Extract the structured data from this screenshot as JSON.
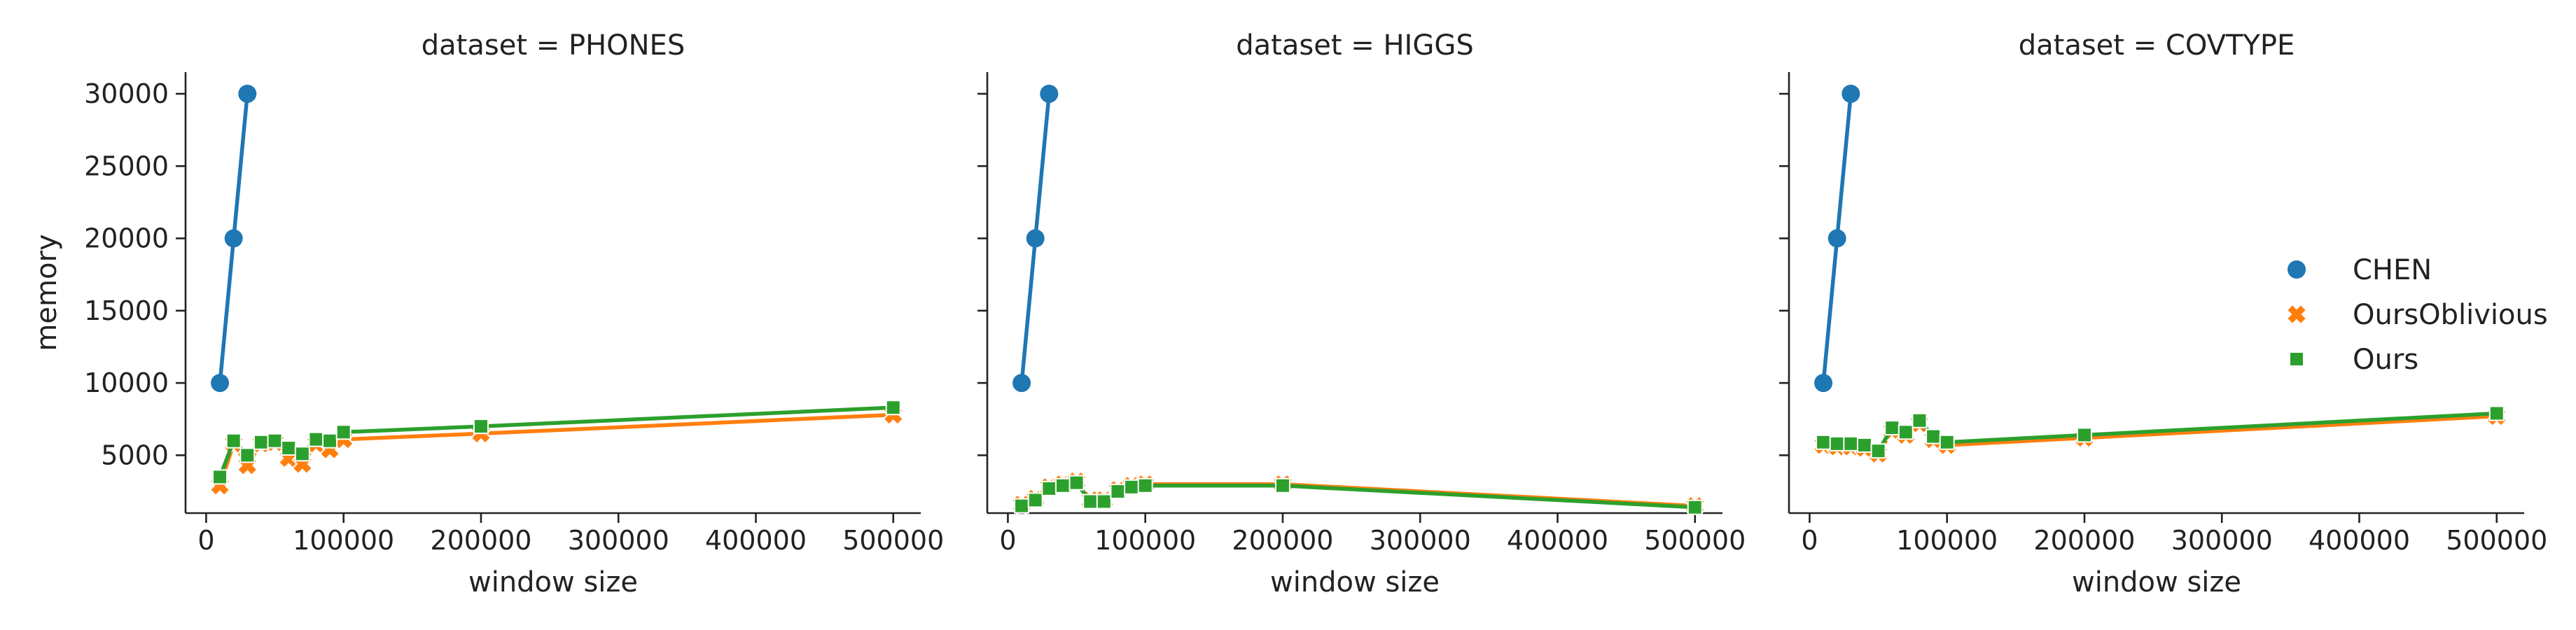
{
  "chart_data": {
    "type": "line",
    "ylabel": "memory",
    "xlabel": "window size",
    "sharey": true,
    "xlim": [
      -15000,
      520000
    ],
    "ylim": [
      1000,
      31500
    ],
    "xticks": [
      0,
      100000,
      200000,
      300000,
      400000,
      500000
    ],
    "yticks": [
      5000,
      10000,
      15000,
      20000,
      25000,
      30000
    ],
    "grid": false,
    "legend": {
      "placement": "right",
      "entries": [
        {
          "name": "CHEN",
          "color": "#1f77b4",
          "marker": "circle"
        },
        {
          "name": "OursOblivious",
          "color": "#ff7f0e",
          "marker": "x"
        },
        {
          "name": "Ours",
          "color": "#2ca02c",
          "marker": "square"
        }
      ]
    },
    "panels": [
      {
        "title": "dataset = PHONES",
        "series": [
          {
            "name": "CHEN",
            "color": "#1f77b4",
            "marker": "circle",
            "x": [
              10000,
              20000,
              30000
            ],
            "y": [
              10000,
              20000,
              30000
            ]
          },
          {
            "name": "OursOblivious",
            "color": "#ff7f0e",
            "marker": "x",
            "x": [
              10000,
              20000,
              30000,
              40000,
              50000,
              60000,
              70000,
              80000,
              90000,
              100000,
              200000,
              500000
            ],
            "y": [
              2900,
              5800,
              4300,
              5800,
              5900,
              4800,
              4400,
              5800,
              5400,
              6100,
              6500,
              7800
            ]
          },
          {
            "name": "Ours",
            "color": "#2ca02c",
            "marker": "square",
            "x": [
              10000,
              20000,
              30000,
              40000,
              50000,
              60000,
              70000,
              80000,
              90000,
              100000,
              200000,
              500000
            ],
            "y": [
              3500,
              6000,
              5000,
              5900,
              6000,
              5500,
              5100,
              6100,
              6000,
              6600,
              7000,
              8300
            ]
          }
        ]
      },
      {
        "title": "dataset = HIGGS",
        "series": [
          {
            "name": "CHEN",
            "color": "#1f77b4",
            "marker": "circle",
            "x": [
              10000,
              20000,
              30000
            ],
            "y": [
              10000,
              20000,
              30000
            ]
          },
          {
            "name": "OursOblivious",
            "color": "#ff7f0e",
            "marker": "x",
            "x": [
              10000,
              20000,
              30000,
              40000,
              50000,
              60000,
              70000,
              80000,
              90000,
              100000,
              200000,
              500000
            ],
            "y": [
              1600,
              2000,
              2800,
              3000,
              3200,
              1900,
              1900,
              2600,
              2900,
              3000,
              3000,
              1500
            ]
          },
          {
            "name": "Ours",
            "color": "#2ca02c",
            "marker": "square",
            "x": [
              10000,
              20000,
              30000,
              40000,
              50000,
              60000,
              70000,
              80000,
              90000,
              100000,
              200000,
              500000
            ],
            "y": [
              1500,
              1900,
              2700,
              2900,
              3100,
              1800,
              1800,
              2500,
              2800,
              2900,
              2900,
              1400
            ]
          }
        ]
      },
      {
        "title": "dataset = COVTYPE",
        "series": [
          {
            "name": "CHEN",
            "color": "#1f77b4",
            "marker": "circle",
            "x": [
              10000,
              20000,
              30000
            ],
            "y": [
              10000,
              20000,
              30000
            ]
          },
          {
            "name": "OursOblivious",
            "color": "#ff7f0e",
            "marker": "x",
            "x": [
              10000,
              20000,
              30000,
              40000,
              50000,
              60000,
              70000,
              80000,
              90000,
              100000,
              200000,
              500000
            ],
            "y": [
              5700,
              5600,
              5600,
              5500,
              5100,
              6700,
              6400,
              7200,
              6100,
              5700,
              6200,
              7700
            ]
          },
          {
            "name": "Ours",
            "color": "#2ca02c",
            "marker": "square",
            "x": [
              10000,
              20000,
              30000,
              40000,
              50000,
              60000,
              70000,
              80000,
              90000,
              100000,
              200000,
              500000
            ],
            "y": [
              5900,
              5800,
              5800,
              5700,
              5300,
              6900,
              6600,
              7400,
              6300,
              5900,
              6400,
              7900
            ]
          }
        ]
      }
    ]
  }
}
